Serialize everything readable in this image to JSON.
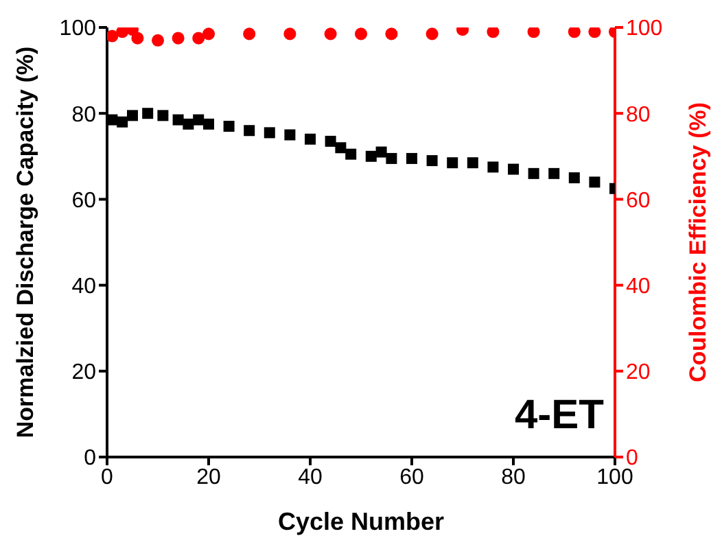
{
  "chart_data": {
    "type": "scatter",
    "xlabel": "Cycle Number",
    "ylabel": "Normalzied Discharge Capacity (%)",
    "y2label": "Coulombic Efficiency (%)",
    "annotations": [
      "4-ET"
    ],
    "xlim": [
      0,
      100
    ],
    "xticks": [
      0,
      20,
      40,
      60,
      80,
      100
    ],
    "ylim": [
      0,
      100
    ],
    "yticks": [
      0,
      20,
      40,
      60,
      80,
      100
    ],
    "y2lim": [
      0,
      100
    ],
    "y2ticks": [
      0,
      20,
      40,
      60,
      80,
      100
    ],
    "grid": false,
    "legend": false,
    "series": [
      {
        "color": "#000000",
        "marker": "square",
        "x": [
          1,
          3,
          5,
          8,
          11,
          14,
          16,
          18,
          20,
          24,
          28,
          32,
          36,
          40,
          44,
          46,
          48,
          52,
          54,
          56,
          60,
          64,
          68,
          72,
          76,
          80,
          84,
          88,
          92,
          96,
          100
        ],
        "values": [
          78.5,
          78,
          79.5,
          80,
          79.5,
          78.5,
          77.5,
          78.5,
          77.5,
          77,
          76,
          75.5,
          75,
          74,
          73.5,
          72,
          70.5,
          70,
          71,
          69.5,
          69.5,
          69,
          68.5,
          68.5,
          67.5,
          67,
          66,
          66,
          65,
          64,
          62.5
        ]
      },
      {
        "color": "#ff0000",
        "marker": "circle",
        "axis": "y2",
        "x": [
          1,
          3,
          5,
          6,
          10,
          14,
          18,
          20,
          28,
          36,
          44,
          50,
          56,
          64,
          70,
          76,
          84,
          92,
          96,
          100
        ],
        "values": [
          98,
          99,
          99.5,
          97.5,
          97,
          97.5,
          97.5,
          98.5,
          98.5,
          98.5,
          98.5,
          98.5,
          98.5,
          98.5,
          99.5,
          99,
          99,
          99,
          99,
          99
        ]
      }
    ]
  }
}
